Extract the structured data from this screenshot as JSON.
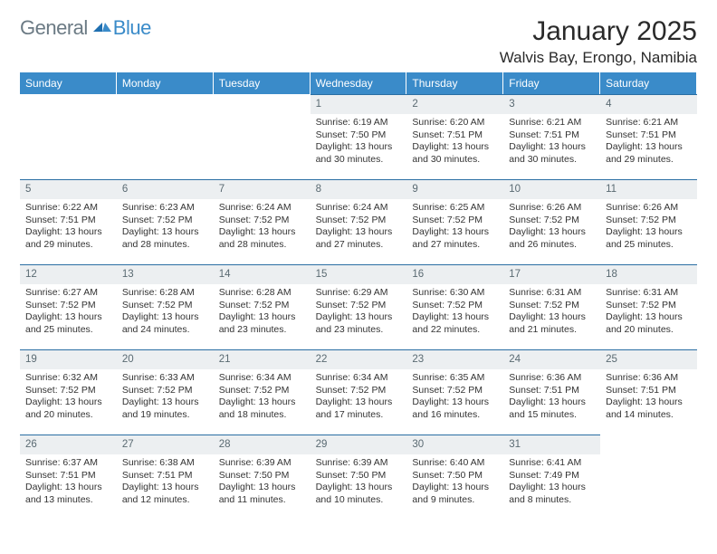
{
  "brand": {
    "general": "General",
    "blue": "Blue"
  },
  "title": "January 2025",
  "location": "Walvis Bay, Erongo, Namibia",
  "colors": {
    "header_bg": "#3a8bc9",
    "header_text": "#ffffff",
    "daybar_bg": "#eceff1",
    "daybar_text": "#5a6a72",
    "daybar_border": "#2a6ea3",
    "body_text": "#333333",
    "logo_gray": "#6b7a84",
    "logo_blue": "#3a8bc9"
  },
  "dow": [
    "Sunday",
    "Monday",
    "Tuesday",
    "Wednesday",
    "Thursday",
    "Friday",
    "Saturday"
  ],
  "weeks": [
    [
      {
        "n": "",
        "t": ""
      },
      {
        "n": "",
        "t": ""
      },
      {
        "n": "",
        "t": ""
      },
      {
        "n": "1",
        "t": "Sunrise: 6:19 AM\nSunset: 7:50 PM\nDaylight: 13 hours and 30 minutes."
      },
      {
        "n": "2",
        "t": "Sunrise: 6:20 AM\nSunset: 7:51 PM\nDaylight: 13 hours and 30 minutes."
      },
      {
        "n": "3",
        "t": "Sunrise: 6:21 AM\nSunset: 7:51 PM\nDaylight: 13 hours and 30 minutes."
      },
      {
        "n": "4",
        "t": "Sunrise: 6:21 AM\nSunset: 7:51 PM\nDaylight: 13 hours and 29 minutes."
      }
    ],
    [
      {
        "n": "5",
        "t": "Sunrise: 6:22 AM\nSunset: 7:51 PM\nDaylight: 13 hours and 29 minutes."
      },
      {
        "n": "6",
        "t": "Sunrise: 6:23 AM\nSunset: 7:52 PM\nDaylight: 13 hours and 28 minutes."
      },
      {
        "n": "7",
        "t": "Sunrise: 6:24 AM\nSunset: 7:52 PM\nDaylight: 13 hours and 28 minutes."
      },
      {
        "n": "8",
        "t": "Sunrise: 6:24 AM\nSunset: 7:52 PM\nDaylight: 13 hours and 27 minutes."
      },
      {
        "n": "9",
        "t": "Sunrise: 6:25 AM\nSunset: 7:52 PM\nDaylight: 13 hours and 27 minutes."
      },
      {
        "n": "10",
        "t": "Sunrise: 6:26 AM\nSunset: 7:52 PM\nDaylight: 13 hours and 26 minutes."
      },
      {
        "n": "11",
        "t": "Sunrise: 6:26 AM\nSunset: 7:52 PM\nDaylight: 13 hours and 25 minutes."
      }
    ],
    [
      {
        "n": "12",
        "t": "Sunrise: 6:27 AM\nSunset: 7:52 PM\nDaylight: 13 hours and 25 minutes."
      },
      {
        "n": "13",
        "t": "Sunrise: 6:28 AM\nSunset: 7:52 PM\nDaylight: 13 hours and 24 minutes."
      },
      {
        "n": "14",
        "t": "Sunrise: 6:28 AM\nSunset: 7:52 PM\nDaylight: 13 hours and 23 minutes."
      },
      {
        "n": "15",
        "t": "Sunrise: 6:29 AM\nSunset: 7:52 PM\nDaylight: 13 hours and 23 minutes."
      },
      {
        "n": "16",
        "t": "Sunrise: 6:30 AM\nSunset: 7:52 PM\nDaylight: 13 hours and 22 minutes."
      },
      {
        "n": "17",
        "t": "Sunrise: 6:31 AM\nSunset: 7:52 PM\nDaylight: 13 hours and 21 minutes."
      },
      {
        "n": "18",
        "t": "Sunrise: 6:31 AM\nSunset: 7:52 PM\nDaylight: 13 hours and 20 minutes."
      }
    ],
    [
      {
        "n": "19",
        "t": "Sunrise: 6:32 AM\nSunset: 7:52 PM\nDaylight: 13 hours and 20 minutes."
      },
      {
        "n": "20",
        "t": "Sunrise: 6:33 AM\nSunset: 7:52 PM\nDaylight: 13 hours and 19 minutes."
      },
      {
        "n": "21",
        "t": "Sunrise: 6:34 AM\nSunset: 7:52 PM\nDaylight: 13 hours and 18 minutes."
      },
      {
        "n": "22",
        "t": "Sunrise: 6:34 AM\nSunset: 7:52 PM\nDaylight: 13 hours and 17 minutes."
      },
      {
        "n": "23",
        "t": "Sunrise: 6:35 AM\nSunset: 7:52 PM\nDaylight: 13 hours and 16 minutes."
      },
      {
        "n": "24",
        "t": "Sunrise: 6:36 AM\nSunset: 7:51 PM\nDaylight: 13 hours and 15 minutes."
      },
      {
        "n": "25",
        "t": "Sunrise: 6:36 AM\nSunset: 7:51 PM\nDaylight: 13 hours and 14 minutes."
      }
    ],
    [
      {
        "n": "26",
        "t": "Sunrise: 6:37 AM\nSunset: 7:51 PM\nDaylight: 13 hours and 13 minutes."
      },
      {
        "n": "27",
        "t": "Sunrise: 6:38 AM\nSunset: 7:51 PM\nDaylight: 13 hours and 12 minutes."
      },
      {
        "n": "28",
        "t": "Sunrise: 6:39 AM\nSunset: 7:50 PM\nDaylight: 13 hours and 11 minutes."
      },
      {
        "n": "29",
        "t": "Sunrise: 6:39 AM\nSunset: 7:50 PM\nDaylight: 13 hours and 10 minutes."
      },
      {
        "n": "30",
        "t": "Sunrise: 6:40 AM\nSunset: 7:50 PM\nDaylight: 13 hours and 9 minutes."
      },
      {
        "n": "31",
        "t": "Sunrise: 6:41 AM\nSunset: 7:49 PM\nDaylight: 13 hours and 8 minutes."
      },
      {
        "n": "",
        "t": ""
      }
    ]
  ]
}
